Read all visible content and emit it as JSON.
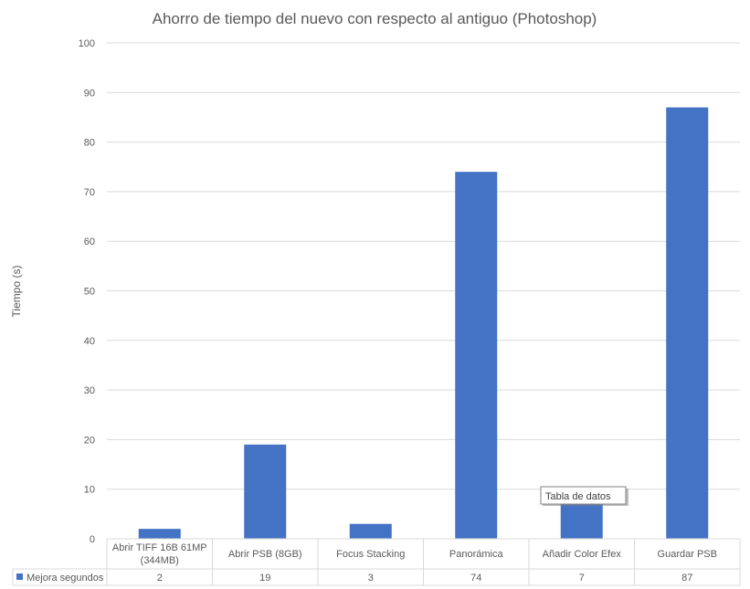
{
  "chart_data": {
    "type": "bar",
    "title": "Ahorro de tiempo del nuevo con respecto al antiguo (Photoshop)",
    "xlabel": "",
    "ylabel": "Tiempo (s)",
    "ylim": [
      0,
      100
    ],
    "yticks": [
      0,
      10,
      20,
      30,
      40,
      50,
      60,
      70,
      80,
      90,
      100
    ],
    "grid": true,
    "legend": "data-table",
    "categories": [
      [
        "Abrir TIFF 16B 61MP",
        "(344MB)"
      ],
      [
        "Abrir PSB (8GB)"
      ],
      [
        "Focus Stacking"
      ],
      [
        "Panorámica"
      ],
      [
        "Añadir Color Efex"
      ],
      [
        "Guardar PSB"
      ]
    ],
    "series": [
      {
        "name": "Mejora segundos",
        "color": "#4472C4",
        "values": [
          2,
          19,
          3,
          74,
          7,
          87
        ],
        "table_labels": [
          "2",
          "19",
          "3",
          "74",
          "7",
          "87"
        ]
      }
    ]
  },
  "tooltip": {
    "text": "Tabla de datos"
  }
}
